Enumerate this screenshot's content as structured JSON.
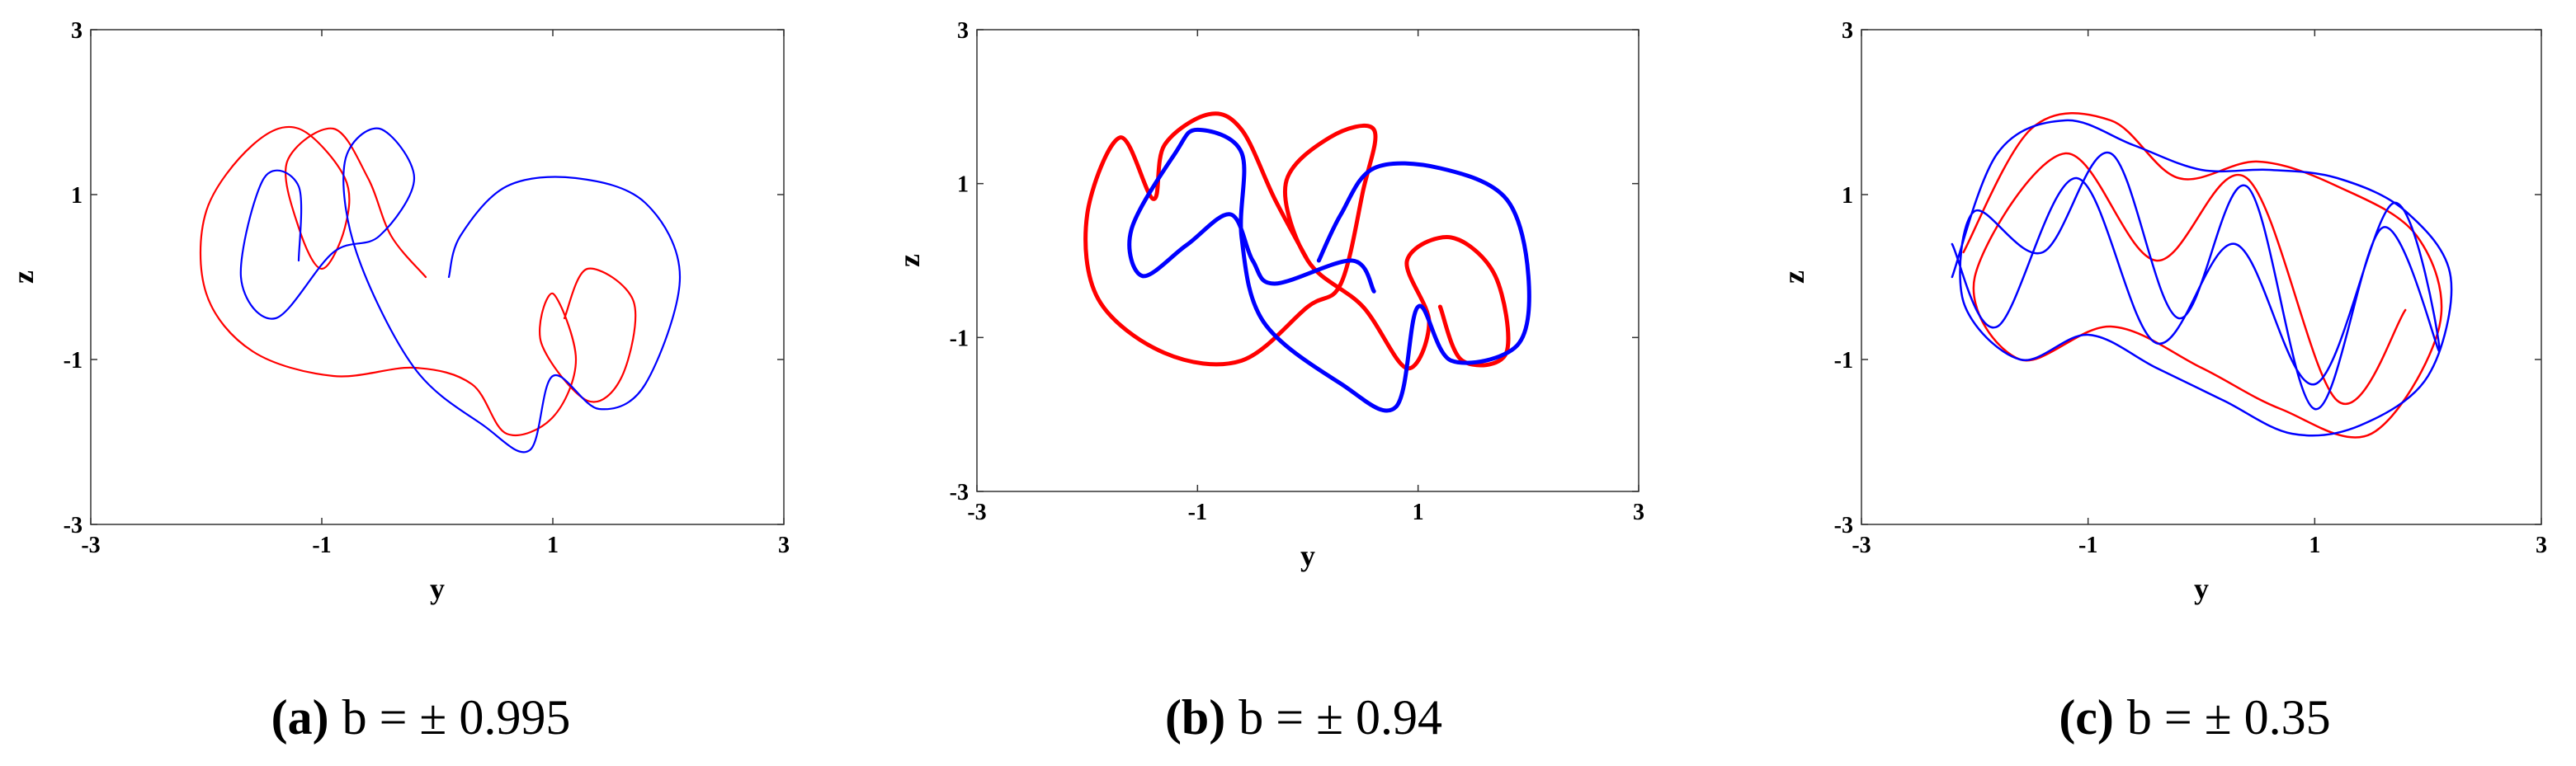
{
  "chart_data": [
    {
      "type": "line",
      "xlabel": "y",
      "ylabel": "z",
      "xlim": [
        -3,
        3
      ],
      "ylim": [
        -3,
        3
      ],
      "xticks": [
        -3,
        -1,
        1,
        3
      ],
      "yticks": [
        -3,
        -1,
        1,
        3
      ],
      "caption": {
        "tag": "(a)",
        "text": "b = ± 0.995"
      },
      "series": [
        {
          "color": "#ff0000",
          "x": [
            -0.1,
            -0.4,
            -0.6,
            -0.9,
            -1.3,
            -1.2,
            -1.0,
            -0.8,
            -0.8,
            -1.2,
            -1.6,
            -2.0,
            -2.0,
            -1.6,
            -0.9,
            -0.2,
            0.3,
            0.6,
            1.0,
            1.2,
            1.0,
            0.9,
            1.3,
            1.6,
            1.7,
            1.3,
            1.1
          ],
          "y": [
            0,
            0.5,
            1.2,
            1.8,
            1.4,
            0.6,
            0.1,
            0.6,
            1.2,
            1.8,
            1.6,
            0.8,
            -0.2,
            -0.9,
            -1.2,
            -1.1,
            -1.3,
            -1.9,
            -1.7,
            -1.0,
            -0.2,
            -0.8,
            -1.5,
            -1.2,
            -0.3,
            0.1,
            -0.5
          ]
        },
        {
          "color": "#0000ff",
          "x": [
            0.1,
            0.2,
            0.6,
            1.2,
            1.8,
            2.1,
            1.8,
            1.4,
            1.0,
            0.8,
            0.4,
            -0.2,
            -0.7,
            -0.8,
            -0.5,
            -0.2,
            -0.5,
            -0.9,
            -1.4,
            -1.7,
            -1.5,
            -1.2,
            -1.2
          ],
          "y": [
            0,
            0.5,
            1.1,
            1.2,
            0.9,
            0.0,
            -1.3,
            -1.6,
            -1.2,
            -2.1,
            -1.8,
            -1.1,
            0.3,
            1.4,
            1.8,
            1.2,
            0.5,
            0.3,
            -0.5,
            0.0,
            1.2,
            1.1,
            0.2
          ]
        }
      ]
    },
    {
      "type": "line",
      "xlabel": "y",
      "ylabel": "z",
      "xlim": [
        -3,
        3
      ],
      "ylim": [
        -3,
        3
      ],
      "xticks": [
        -3,
        -1,
        1,
        3
      ],
      "yticks": [
        -3,
        -1,
        1,
        3
      ],
      "caption": {
        "tag": "(b)",
        "text": "b = ± 0.94"
      },
      "series": [
        {
          "color": "#ff0000",
          "x": [
            0.0,
            -0.3,
            -0.6,
            -0.9,
            -1.3,
            -1.4,
            -1.7,
            -2.0,
            -1.9,
            -1.3,
            -0.6,
            0.0,
            0.3,
            0.5,
            0.6,
            0.2,
            -0.2,
            0.0,
            0.5,
            0.9,
            1.1,
            0.9,
            1.3,
            1.7,
            1.8,
            1.4,
            1.2
          ],
          "y": [
            0.0,
            0.8,
            1.7,
            1.9,
            1.5,
            0.8,
            1.6,
            0.6,
            -0.5,
            -1.2,
            -1.3,
            -0.6,
            -0.3,
            0.9,
            1.7,
            1.6,
            1.0,
            0.0,
            -0.6,
            -1.4,
            -0.8,
            0.0,
            0.3,
            -0.2,
            -1.2,
            -1.3,
            -0.6
          ]
        },
        {
          "color": "#0000ff",
          "x": [
            0.1,
            0.3,
            0.6,
            1.2,
            1.8,
            2.0,
            1.9,
            1.3,
            1.0,
            0.8,
            0.3,
            -0.4,
            -0.6,
            -0.6,
            -1.0,
            -1.2,
            -1.6,
            -1.5,
            -1.1,
            -0.7,
            -0.5,
            -0.3,
            0.4,
            0.6
          ],
          "y": [
            0.0,
            0.6,
            1.2,
            1.2,
            0.8,
            -0.2,
            -1.1,
            -1.3,
            -0.6,
            -1.9,
            -1.6,
            -0.8,
            0.3,
            1.4,
            1.7,
            1.4,
            0.4,
            -0.2,
            0.2,
            0.6,
            0.0,
            -0.3,
            0.0,
            -0.4
          ]
        }
      ]
    },
    {
      "type": "line",
      "xlabel": "y",
      "ylabel": "z",
      "xlim": [
        -3,
        3
      ],
      "ylim": [
        -3,
        3
      ],
      "xticks": [
        -3,
        -1,
        1,
        3
      ],
      "yticks": [
        -3,
        -1,
        1,
        3
      ],
      "caption": {
        "tag": "(c)",
        "text": "b = ± 0.35"
      },
      "series": [
        {
          "color": "#ff0000",
          "x": [
            -2.1,
            -1.5,
            -0.8,
            -0.2,
            0.5,
            1.2,
            1.9,
            2.1,
            1.5,
            0.7,
            0.0,
            -0.8,
            -1.6,
            -2.0,
            -1.2,
            -0.4,
            0.4,
            1.2,
            1.8
          ],
          "y": [
            0.3,
            1.8,
            1.9,
            1.2,
            1.4,
            1.1,
            0.5,
            -0.6,
            -1.9,
            -1.6,
            -1.1,
            -0.6,
            -1.0,
            0.0,
            1.5,
            0.2,
            1.2,
            -1.5,
            -0.4
          ]
        },
        {
          "color": "#0000ff",
          "x": [
            -2.2,
            -1.8,
            -1.2,
            -0.6,
            0.0,
            0.6,
            1.2,
            1.8,
            2.2,
            2.0,
            1.4,
            0.8,
            0.2,
            -0.4,
            -1.0,
            -1.6,
            -2.1,
            -2.0,
            -1.4,
            -0.8,
            -0.2,
            0.4,
            1.0,
            1.6,
            2.1,
            1.7,
            1.0,
            0.3,
            -0.4,
            -1.1,
            -1.8,
            -2.2
          ],
          "y": [
            0.0,
            1.5,
            1.9,
            1.6,
            1.3,
            1.3,
            1.2,
            0.8,
            0.0,
            -1.2,
            -1.8,
            -1.9,
            -1.5,
            -1.1,
            -0.7,
            -1.0,
            -0.3,
            0.8,
            0.3,
            1.5,
            -0.5,
            1.1,
            -1.6,
            0.6,
            -0.9,
            0.9,
            -1.3,
            0.4,
            -0.8,
            1.2,
            -0.6,
            0.4
          ]
        }
      ]
    }
  ]
}
